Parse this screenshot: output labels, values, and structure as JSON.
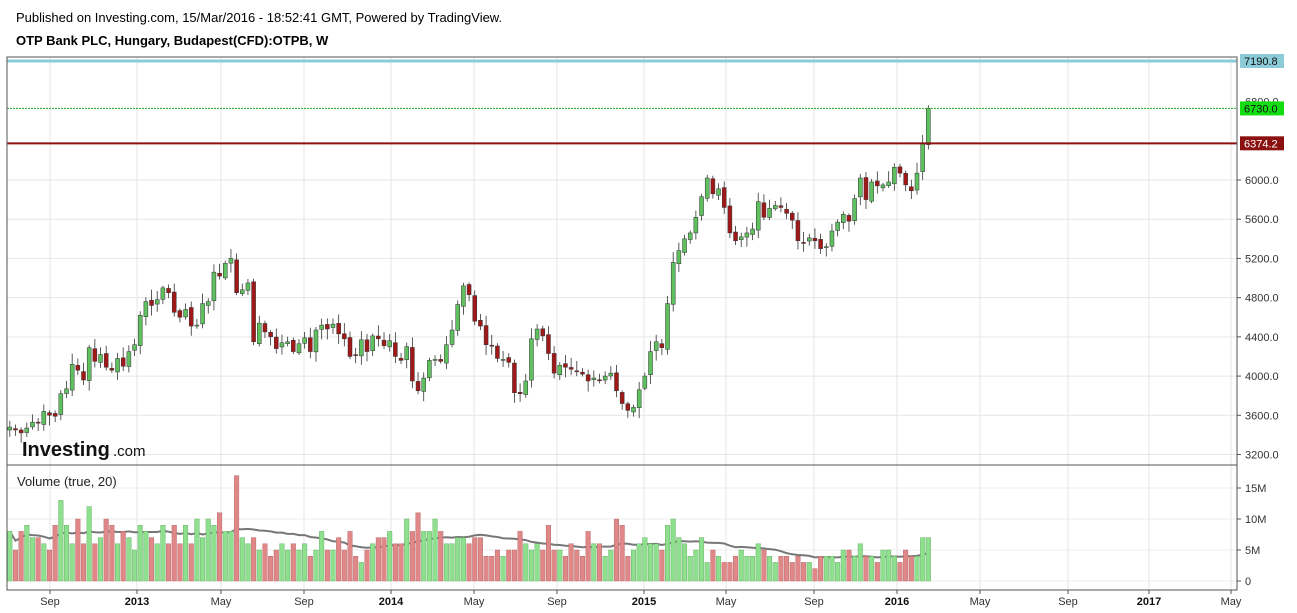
{
  "header": {
    "published": "Published on Investing.com, 15/Mar/2016 - 18:52:41 GMT, Powered by TradingView.",
    "symbol": "OTP Bank PLC, Hungary, Budapest(CFD):OTPB, W"
  },
  "logo": {
    "main": "Investing",
    "sub": ".com"
  },
  "volume_label": "Volume (true, 20)",
  "colors": {
    "up": "#5fc05f",
    "down": "#a01818",
    "vol_up": "#8ee08e",
    "vol_down": "#e08888",
    "ma": "#777777",
    "line_top": "#8ccbd8",
    "line_red": "#8b1010",
    "line_green": "#22aa22"
  },
  "chart_data": {
    "type": "candlestick",
    "title": "OTP Bank PLC, Hungary, Budapest(CFD):OTPB, W",
    "price_axis": {
      "ylim": [
        3100,
        7250
      ],
      "ticks": [
        "3200.0",
        "3600.0",
        "4000.0",
        "4400.0",
        "4800.0",
        "5200.0",
        "5600.0",
        "6000.0"
      ],
      "partial_tick": "6800.0"
    },
    "volume_axis": {
      "ylim": [
        0,
        17
      ],
      "ticks": [
        "0",
        "5M",
        "10M",
        "15M"
      ]
    },
    "x_labels": [
      {
        "text": "Sep",
        "bold": false
      },
      {
        "text": "2013",
        "bold": true
      },
      {
        "text": "May",
        "bold": false
      },
      {
        "text": "Sep",
        "bold": false
      },
      {
        "text": "2014",
        "bold": true
      },
      {
        "text": "May",
        "bold": false
      },
      {
        "text": "Sep",
        "bold": false
      },
      {
        "text": "2015",
        "bold": true
      },
      {
        "text": "May",
        "bold": false
      },
      {
        "text": "Sep",
        "bold": false
      },
      {
        "text": "2016",
        "bold": true
      },
      {
        "text": "May",
        "bold": false
      },
      {
        "text": "Sep",
        "bold": false
      },
      {
        "text": "2017",
        "bold": true
      },
      {
        "text": "May",
        "bold": false
      }
    ],
    "price_lines": [
      {
        "name": "resistance-top",
        "value": 7190.8,
        "label": "7190.8"
      },
      {
        "name": "last-price",
        "value": 6730.0,
        "label": "6730.0"
      },
      {
        "name": "resistance",
        "value": 6374.2,
        "label": "6374.2"
      }
    ],
    "closes": [
      3480,
      3450,
      3420,
      3470,
      3530,
      3520,
      3640,
      3600,
      3590,
      3820,
      3870,
      4120,
      4060,
      3960,
      4290,
      4150,
      4220,
      4090,
      4060,
      4180,
      4100,
      4250,
      4320,
      4620,
      4760,
      4720,
      4780,
      4900,
      4850,
      4650,
      4600,
      4680,
      4510,
      4520,
      4740,
      4760,
      5060,
      5020,
      5150,
      5200,
      4850,
      4880,
      4950,
      4350,
      4540,
      4450,
      4400,
      4280,
      4340,
      4350,
      4250,
      4330,
      4390,
      4250,
      4470,
      4520,
      4480,
      4530,
      4430,
      4380,
      4200,
      4210,
      4370,
      4250,
      4410,
      4380,
      4310,
      4360,
      4200,
      4160,
      4300,
      3950,
      3850,
      3980,
      4160,
      4170,
      4150,
      4320,
      4470,
      4730,
      4920,
      4830,
      4560,
      4510,
      4320,
      4310,
      4180,
      4170,
      4140,
      3830,
      3820,
      3950,
      4380,
      4480,
      4410,
      4230,
      4030,
      4110,
      4090,
      4070,
      4050,
      4020,
      3950,
      3980,
      3960,
      4000,
      4030,
      3850,
      3720,
      3650,
      3680,
      3860,
      4000,
      4250,
      4350,
      4290,
      4740,
      5160,
      5280,
      5400,
      5460,
      5620,
      5830,
      6020,
      5860,
      5910,
      5720,
      5460,
      5380,
      5420,
      5460,
      5500,
      5780,
      5620,
      5710,
      5740,
      5720,
      5660,
      5590,
      5380,
      5360,
      5410,
      5380,
      5300,
      5320,
      5480,
      5570,
      5650,
      5580,
      5810,
      6020,
      5800,
      5980,
      5940,
      5950,
      5980,
      6130,
      6070,
      5950,
      5890,
      6070,
      6380,
      6730
    ],
    "volumes": [
      8,
      5,
      8,
      9,
      7,
      7,
      6,
      5,
      9,
      13,
      9,
      6,
      10,
      6,
      12,
      6,
      7,
      10,
      9,
      6,
      8,
      7,
      5,
      9,
      8,
      7,
      6,
      9,
      6,
      9,
      6,
      9,
      6,
      10,
      7,
      10,
      9,
      11,
      8,
      8,
      17,
      7,
      6,
      7,
      5,
      6,
      4,
      5,
      6,
      5,
      6,
      5,
      6,
      4,
      5,
      8,
      5,
      5,
      7,
      5,
      8,
      4,
      3,
      5,
      6,
      7,
      7,
      8,
      6,
      6,
      10,
      8,
      11,
      8,
      8,
      10,
      8,
      6,
      6,
      7,
      7,
      6,
      7,
      7,
      4,
      4,
      5,
      4,
      5,
      5,
      8,
      6,
      5,
      6,
      5,
      9,
      5,
      5,
      4,
      6,
      5,
      4,
      8,
      6,
      6,
      4,
      5,
      10,
      9,
      4,
      5,
      6,
      7,
      6,
      6,
      5,
      9,
      10,
      7,
      6,
      4,
      5,
      7,
      3,
      5,
      4,
      3,
      3,
      4,
      5,
      4,
      4,
      6,
      5,
      4,
      3,
      4,
      4,
      3,
      4,
      3,
      3,
      2,
      4,
      4,
      4,
      3,
      5,
      5,
      4,
      6,
      4,
      4,
      3,
      5,
      5,
      4,
      3,
      5,
      4,
      4,
      7,
      7
    ]
  }
}
